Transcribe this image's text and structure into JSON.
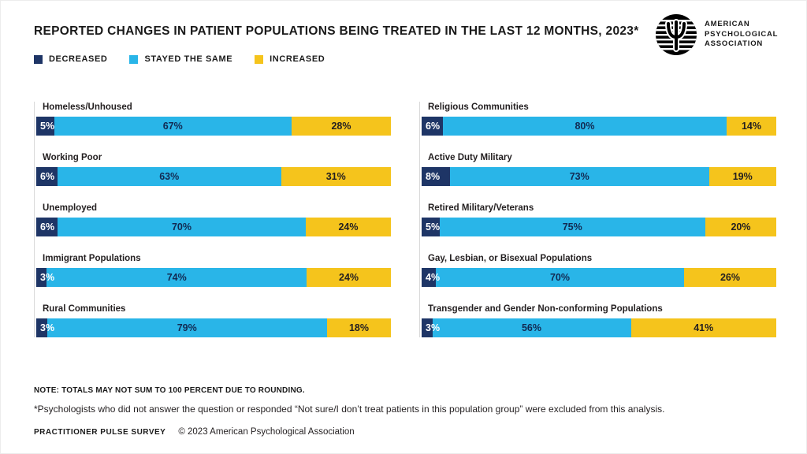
{
  "header": {
    "title": "REPORTED CHANGES IN PATIENT POPULATIONS BEING TREATED IN THE LAST 12 MONTHS, 2023*"
  },
  "logo": {
    "lines": [
      "AMERICAN",
      "PSYCHOLOGICAL",
      "ASSOCIATION"
    ]
  },
  "legend": {
    "items": [
      {
        "label": "DECREASED",
        "color": "#1E3566"
      },
      {
        "label": "STAYED THE SAME",
        "color": "#29B5E8"
      },
      {
        "label": "INCREASED",
        "color": "#F5C41C"
      }
    ]
  },
  "chart_data": {
    "type": "bar",
    "orientation": "horizontal",
    "stacked": true,
    "unit": "%",
    "series_names": [
      "Decreased",
      "Stayed the same",
      "Increased"
    ],
    "colors": {
      "decreased": "#1E3566",
      "stayed_the_same": "#29B5E8",
      "increased": "#F5C41C"
    },
    "xlim": [
      0,
      100
    ],
    "grid": false,
    "legend_position": "top-left",
    "columns": [
      {
        "rows": [
          {
            "category": "Homeless/Unhoused",
            "values": [
              5,
              67,
              28
            ]
          },
          {
            "category": "Working Poor",
            "values": [
              6,
              63,
              31
            ]
          },
          {
            "category": "Unemployed",
            "values": [
              6,
              70,
              24
            ]
          },
          {
            "category": "Immigrant Populations",
            "values": [
              3,
              74,
              24
            ]
          },
          {
            "category": "Rural Communities",
            "values": [
              3,
              79,
              18
            ]
          }
        ]
      },
      {
        "rows": [
          {
            "category": "Religious Communities",
            "values": [
              6,
              80,
              14
            ]
          },
          {
            "category": "Active Duty Military",
            "values": [
              8,
              73,
              19
            ]
          },
          {
            "category": "Retired Military/Veterans",
            "values": [
              5,
              75,
              20
            ]
          },
          {
            "category": "Gay, Lesbian, or Bisexual Populations",
            "values": [
              4,
              70,
              26
            ]
          },
          {
            "category": "Transgender and Gender Non-conforming Populations",
            "values": [
              3,
              56,
              41
            ]
          }
        ]
      }
    ]
  },
  "footer": {
    "note": "NOTE: TOTALS MAY NOT SUM TO 100 PERCENT DUE TO ROUNDING.",
    "footnote": "*Psychologists who did not answer the question or responded “Not sure/I don’t treat patients in this population group” were excluded from this analysis.",
    "source": "PRACTITIONER PULSE SURVEY",
    "copyright": "© 2023 American Psychological Association"
  }
}
